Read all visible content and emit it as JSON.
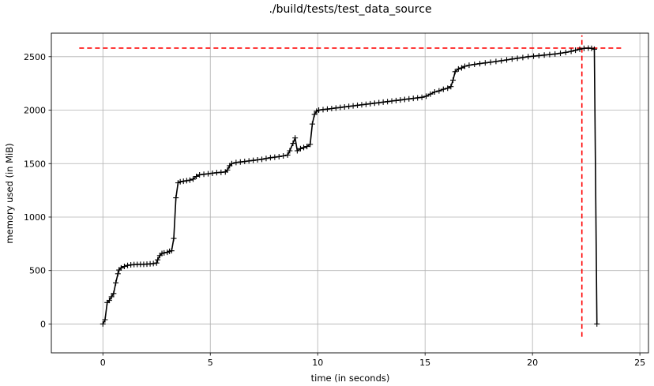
{
  "chart_data": {
    "type": "line",
    "title": "./build/tests/test_data_source",
    "xlabel": "time (in seconds)",
    "ylabel": "memory used (in MiB)",
    "xlim": [
      -2.4,
      25.4
    ],
    "ylim": [
      -270,
      2720
    ],
    "xticks": [
      0,
      5,
      10,
      15,
      20,
      25
    ],
    "yticks": [
      0,
      500,
      1000,
      1500,
      2000,
      2500
    ],
    "grid": true,
    "series": [
      {
        "color": "#000000",
        "marker": "+",
        "points": [
          [
            0.0,
            0
          ],
          [
            0.1,
            40
          ],
          [
            0.2,
            200
          ],
          [
            0.3,
            220
          ],
          [
            0.4,
            255
          ],
          [
            0.5,
            285
          ],
          [
            0.6,
            385
          ],
          [
            0.7,
            470
          ],
          [
            0.75,
            505
          ],
          [
            0.85,
            525
          ],
          [
            1.0,
            538
          ],
          [
            1.15,
            548
          ],
          [
            1.3,
            553
          ],
          [
            1.45,
            556
          ],
          [
            1.6,
            557
          ],
          [
            1.75,
            558
          ],
          [
            1.9,
            558
          ],
          [
            2.05,
            560
          ],
          [
            2.2,
            562
          ],
          [
            2.35,
            565
          ],
          [
            2.5,
            570
          ],
          [
            2.55,
            600
          ],
          [
            2.65,
            640
          ],
          [
            2.75,
            660
          ],
          [
            2.85,
            665
          ],
          [
            3.0,
            670
          ],
          [
            3.1,
            680
          ],
          [
            3.2,
            685
          ],
          [
            3.3,
            800
          ],
          [
            3.4,
            1180
          ],
          [
            3.5,
            1320
          ],
          [
            3.6,
            1330
          ],
          [
            3.75,
            1335
          ],
          [
            3.9,
            1340
          ],
          [
            4.05,
            1345
          ],
          [
            4.2,
            1355
          ],
          [
            4.35,
            1380
          ],
          [
            4.5,
            1395
          ],
          [
            4.7,
            1400
          ],
          [
            4.9,
            1405
          ],
          [
            5.1,
            1410
          ],
          [
            5.3,
            1415
          ],
          [
            5.5,
            1418
          ],
          [
            5.7,
            1422
          ],
          [
            5.8,
            1440
          ],
          [
            5.9,
            1480
          ],
          [
            6.0,
            1500
          ],
          [
            6.2,
            1510
          ],
          [
            6.4,
            1515
          ],
          [
            6.6,
            1520
          ],
          [
            6.8,
            1525
          ],
          [
            7.0,
            1530
          ],
          [
            7.2,
            1535
          ],
          [
            7.4,
            1540
          ],
          [
            7.6,
            1548
          ],
          [
            7.8,
            1555
          ],
          [
            8.0,
            1560
          ],
          [
            8.2,
            1565
          ],
          [
            8.4,
            1572
          ],
          [
            8.6,
            1580
          ],
          [
            8.7,
            1620
          ],
          [
            8.85,
            1690
          ],
          [
            8.95,
            1740
          ],
          [
            9.05,
            1620
          ],
          [
            9.2,
            1640
          ],
          [
            9.35,
            1650
          ],
          [
            9.5,
            1660
          ],
          [
            9.65,
            1680
          ],
          [
            9.75,
            1870
          ],
          [
            9.85,
            1960
          ],
          [
            9.95,
            1990
          ],
          [
            10.05,
            2000
          ],
          [
            10.25,
            2005
          ],
          [
            10.45,
            2010
          ],
          [
            10.65,
            2015
          ],
          [
            10.85,
            2020
          ],
          [
            11.05,
            2025
          ],
          [
            11.25,
            2030
          ],
          [
            11.45,
            2035
          ],
          [
            11.65,
            2040
          ],
          [
            11.85,
            2045
          ],
          [
            12.05,
            2050
          ],
          [
            12.25,
            2055
          ],
          [
            12.45,
            2060
          ],
          [
            12.65,
            2065
          ],
          [
            12.85,
            2070
          ],
          [
            13.05,
            2075
          ],
          [
            13.25,
            2080
          ],
          [
            13.45,
            2085
          ],
          [
            13.65,
            2090
          ],
          [
            13.85,
            2095
          ],
          [
            14.05,
            2100
          ],
          [
            14.25,
            2105
          ],
          [
            14.45,
            2110
          ],
          [
            14.65,
            2115
          ],
          [
            14.85,
            2120
          ],
          [
            15.05,
            2130
          ],
          [
            15.25,
            2150
          ],
          [
            15.45,
            2170
          ],
          [
            15.65,
            2180
          ],
          [
            15.85,
            2195
          ],
          [
            16.05,
            2205
          ],
          [
            16.2,
            2220
          ],
          [
            16.3,
            2280
          ],
          [
            16.4,
            2360
          ],
          [
            16.55,
            2385
          ],
          [
            16.7,
            2395
          ],
          [
            16.85,
            2410
          ],
          [
            17.05,
            2420
          ],
          [
            17.3,
            2428
          ],
          [
            17.55,
            2435
          ],
          [
            17.8,
            2442
          ],
          [
            18.05,
            2448
          ],
          [
            18.3,
            2455
          ],
          [
            18.55,
            2462
          ],
          [
            18.8,
            2470
          ],
          [
            19.05,
            2478
          ],
          [
            19.3,
            2485
          ],
          [
            19.55,
            2492
          ],
          [
            19.8,
            2500
          ],
          [
            20.05,
            2505
          ],
          [
            20.3,
            2510
          ],
          [
            20.55,
            2515
          ],
          [
            20.8,
            2520
          ],
          [
            21.05,
            2525
          ],
          [
            21.3,
            2532
          ],
          [
            21.55,
            2540
          ],
          [
            21.8,
            2550
          ],
          [
            22.0,
            2560
          ],
          [
            22.2,
            2570
          ],
          [
            22.4,
            2578
          ],
          [
            22.6,
            2580
          ],
          [
            22.75,
            2578
          ],
          [
            22.88,
            2570
          ],
          [
            23.0,
            0
          ]
        ]
      }
    ],
    "annotations": {
      "max_hline": {
        "y": 2580,
        "x_from": -1.1,
        "x_to": 24.2,
        "color": "#ff0000",
        "style": "dashed"
      },
      "max_vline": {
        "x": 22.3,
        "y_from": -120,
        "y_to": 2700,
        "color": "#ff0000",
        "style": "dashed"
      }
    }
  }
}
